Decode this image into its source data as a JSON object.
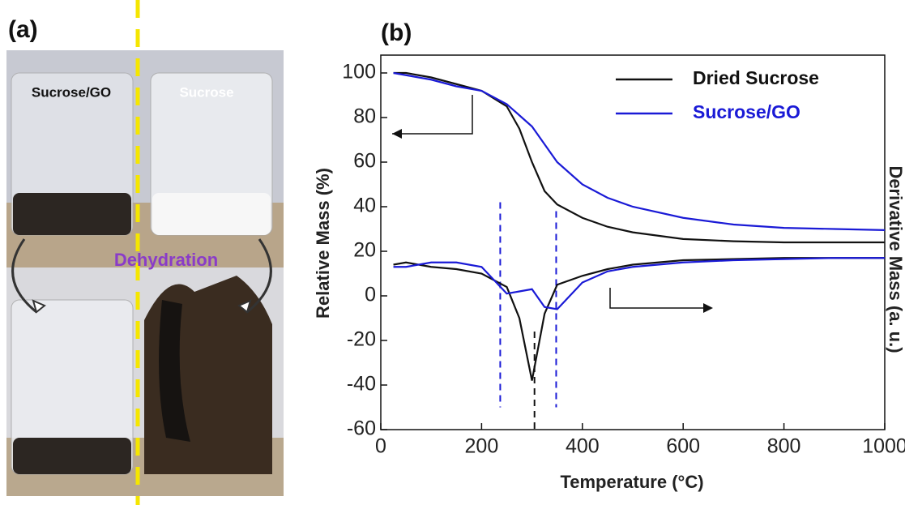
{
  "photo": {
    "label": "(a)",
    "left_label": "Sucrose/GO",
    "right_label": "Sucrose",
    "arrow_label": "Dehydration"
  },
  "chart_data": {
    "type": "line",
    "title": "(b)",
    "x_label": "Temperature (°C)",
    "y_label": "Relative Mass (%)",
    "y2_label": "Derivative Mass (a. u.)",
    "xlim": [
      0,
      1000
    ],
    "xticks": [
      0,
      200,
      400,
      600,
      800,
      1000
    ],
    "ylim": [
      -60,
      108
    ],
    "yticks": [
      -60,
      -40,
      -20,
      0,
      20,
      40,
      60,
      80,
      100
    ],
    "legend": "upper right",
    "x": [
      25,
      50,
      100,
      150,
      200,
      250,
      275,
      300,
      325,
      350,
      400,
      450,
      500,
      600,
      700,
      800,
      900,
      1000
    ],
    "series": [
      {
        "name": "Dried Sucrose",
        "color": "#111111",
        "values": [
          100,
          100,
          98,
          95,
          92,
          85,
          75,
          60,
          47,
          41,
          35,
          31,
          28.5,
          25.5,
          24.5,
          24,
          24,
          24
        ]
      },
      {
        "name": "Sucrose/GO",
        "color": "#1a1ad6",
        "values": [
          100,
          99,
          97,
          94,
          92,
          86,
          81,
          76,
          68,
          60,
          50,
          44,
          40,
          35,
          32,
          30.5,
          30,
          29.5
        ]
      }
    ],
    "derivative_series": [
      {
        "color": "#111111",
        "values": [
          14,
          15,
          13,
          12,
          10,
          4,
          -10,
          -38,
          -8,
          5,
          9,
          12,
          14,
          16,
          16.5,
          17,
          17,
          17
        ]
      },
      {
        "color": "#1a1ad6",
        "values": [
          13,
          13,
          15,
          15,
          13,
          1,
          2,
          3,
          -5,
          -6,
          6,
          11,
          13,
          15,
          16,
          16.5,
          17,
          17
        ]
      }
    ],
    "markers": [
      {
        "x": 237,
        "y": [
          42,
          -50
        ],
        "color": "#1a1ad6"
      },
      {
        "x": 348,
        "y": [
          38,
          -50
        ],
        "color": "#1a1ad6"
      },
      {
        "x": 305,
        "y": [
          -16,
          -60
        ],
        "color": "#111111"
      }
    ]
  }
}
